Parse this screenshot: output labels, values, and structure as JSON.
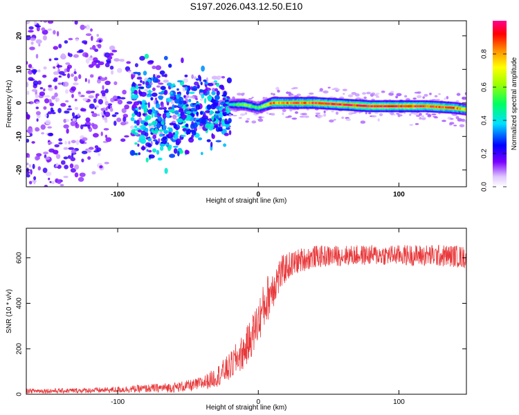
{
  "title": "S197.2026.043.12.50.E10",
  "chart_data": [
    {
      "type": "heatmap",
      "xlabel": "Height of straight line (km)",
      "ylabel": "Frequency (Hz)",
      "xlim": [
        -165,
        148
      ],
      "ylim": [
        -25,
        24.5
      ],
      "xticks": [
        -100,
        0,
        100
      ],
      "yticks": [
        -20,
        -10,
        0,
        10,
        20
      ],
      "colorbar": {
        "label": "Normalized spectral amplitude",
        "range": [
          0.0,
          1.0
        ],
        "ticks": [
          0.0,
          0.2,
          0.4,
          0.6,
          0.8
        ],
        "tick_labels": [
          "0.0",
          "0.2",
          "0.4",
          "0.6",
          "0.8"
        ]
      },
      "features": [
        {
          "x_range": [
            -165,
            -20
          ],
          "description": "scattered low-amplitude noise",
          "amplitude": 0.15
        },
        {
          "x_range": [
            -90,
            -20
          ],
          "center_hz": -3,
          "amplitude": 0.3
        },
        {
          "x_range": [
            -20,
            148
          ],
          "center_hz": -1,
          "amplitude": 0.9
        }
      ],
      "ridge": {
        "x": [
          -20,
          -10,
          0,
          10,
          20,
          40,
          60,
          80,
          100,
          120,
          140,
          148
        ],
        "freq_hz": [
          -0.5,
          -0.5,
          -1.5,
          0.0,
          0.0,
          0.0,
          -0.5,
          -1.0,
          -1.0,
          -1.0,
          -1.5,
          -2.0
        ],
        "amplitude": [
          0.4,
          0.6,
          0.5,
          0.8,
          0.85,
          0.9,
          0.92,
          0.95,
          0.95,
          0.9,
          0.85,
          0.7
        ]
      }
    },
    {
      "type": "line",
      "xlabel": "Height of straight line (km)",
      "ylabel": "SNR (10 * v/v)",
      "xlim": [
        -165,
        148
      ],
      "ylim": [
        0,
        730
      ],
      "xticks": [
        -100,
        0,
        100
      ],
      "yticks": [
        0,
        200,
        400,
        600
      ],
      "series": [
        {
          "name": "SNR",
          "color": "#e8383a",
          "x": [
            -165,
            -140,
            -110,
            -80,
            -60,
            -45,
            -35,
            -28,
            -20,
            -15,
            -10,
            -5,
            0,
            5,
            10,
            15,
            20,
            30,
            40,
            60,
            80,
            100,
            120,
            140,
            148
          ],
          "mean": [
            15,
            15,
            18,
            25,
            30,
            40,
            60,
            85,
            120,
            160,
            190,
            250,
            320,
            400,
            470,
            520,
            560,
            590,
            605,
            610,
            612,
            612,
            610,
            608,
            600
          ],
          "noise": [
            12,
            12,
            14,
            20,
            25,
            30,
            40,
            55,
            70,
            80,
            90,
            100,
            110,
            120,
            110,
            90,
            70,
            60,
            55,
            50,
            50,
            50,
            55,
            55,
            55
          ]
        }
      ]
    }
  ],
  "colors": {
    "line": "#e8383a",
    "axis": "#000000",
    "background": "#ffffff"
  }
}
